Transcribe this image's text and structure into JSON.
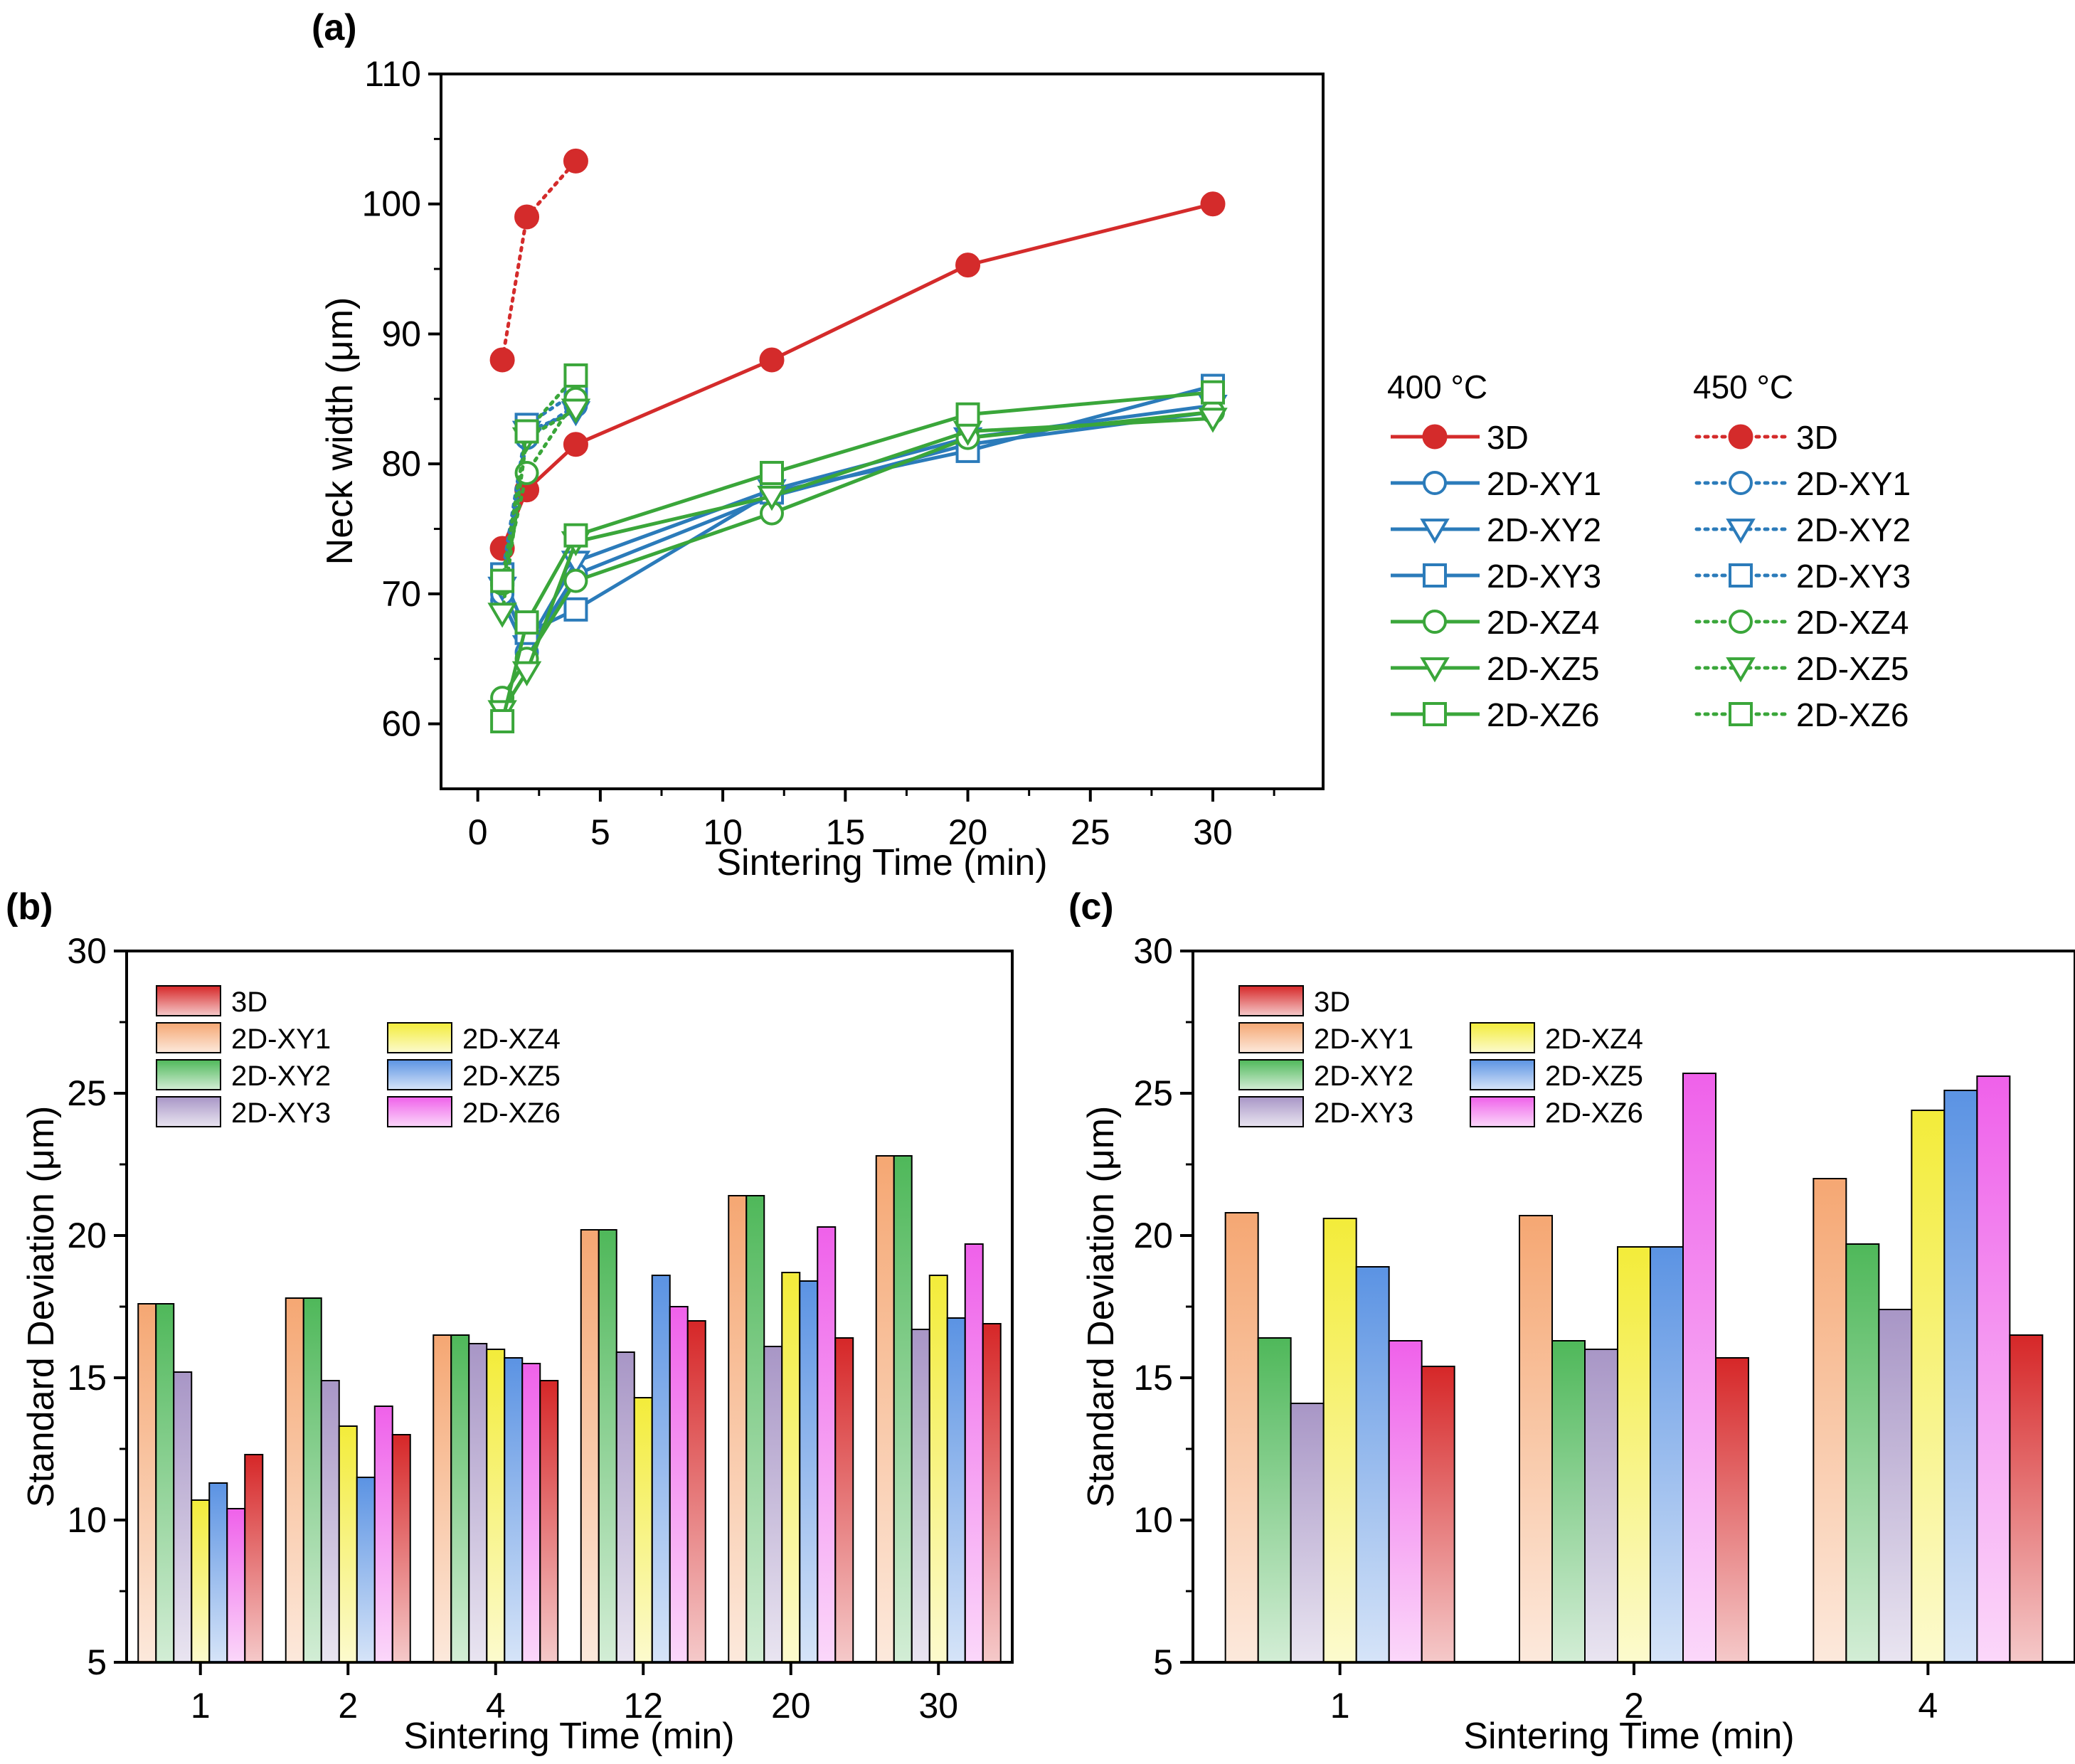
{
  "panels": {
    "a": "(a)",
    "b": "(b)",
    "c": "(c)"
  },
  "colors": {
    "3D": "#d62728",
    "2D-XY1": "#f5a773",
    "2D-XY2": "#4fb85a",
    "2D-XY3": "#a896c6",
    "2D-XZ4": "#f3ec3a",
    "2D-XZ5": "#5b93e3",
    "2D-XZ6": "#ef61ea",
    "line_red": "#d42b2b",
    "line_blue": "#2b7bba",
    "line_green": "#3aa63a"
  },
  "chart_data": [
    {
      "id": "a",
      "type": "line",
      "xlabel": "Sintering Time (min)",
      "ylabel": "Neck width (μm)",
      "xlim": [
        -1.5,
        34.5
      ],
      "ylim": [
        55,
        110
      ],
      "xticks": [
        0,
        5,
        10,
        15,
        20,
        25,
        30
      ],
      "yticks": [
        60,
        70,
        80,
        90,
        100,
        110
      ],
      "legend": {
        "placement": "right",
        "header_400": "400 °C",
        "header_450": "450 °C",
        "labels": [
          "3D",
          "2D-XY1",
          "2D-XY2",
          "2D-XY3",
          "2D-XZ4",
          "2D-XZ5",
          "2D-XZ6"
        ]
      },
      "series": [
        {
          "name": "3D",
          "temp": "400",
          "style": "solid",
          "color": "line_red",
          "marker": "filled-circle",
          "x": [
            1,
            2,
            4,
            12,
            20,
            30
          ],
          "y": [
            73.5,
            78.0,
            81.5,
            88.0,
            95.3,
            100.0
          ]
        },
        {
          "name": "2D-XY1",
          "temp": "400",
          "style": "solid",
          "color": "line_blue",
          "marker": "circle",
          "x": [
            1,
            2,
            4,
            12,
            20,
            30
          ],
          "y": [
            69.5,
            65.5,
            71.5,
            77.5,
            81.5,
            84.0
          ]
        },
        {
          "name": "2D-XY2",
          "temp": "400",
          "style": "solid",
          "color": "line_blue",
          "marker": "triangle",
          "x": [
            1,
            2,
            4,
            12,
            20,
            30
          ],
          "y": [
            70.5,
            66.0,
            72.5,
            78.0,
            82.0,
            84.5
          ]
        },
        {
          "name": "2D-XY3",
          "temp": "400",
          "style": "solid",
          "color": "line_blue",
          "marker": "square",
          "x": [
            1,
            2,
            4,
            12,
            20,
            30
          ],
          "y": [
            71.5,
            67.0,
            68.8,
            77.8,
            81.0,
            86.0
          ]
        },
        {
          "name": "2D-XZ4",
          "temp": "400",
          "style": "solid",
          "color": "line_green",
          "marker": "circle",
          "x": [
            1,
            2,
            4,
            12,
            20,
            30
          ],
          "y": [
            62.0,
            65.0,
            71.0,
            76.2,
            82.0,
            84.0
          ]
        },
        {
          "name": "2D-XZ5",
          "temp": "400",
          "style": "solid",
          "color": "line_green",
          "marker": "triangle",
          "x": [
            1,
            2,
            4,
            12,
            20,
            30
          ],
          "y": [
            61.0,
            64.0,
            74.0,
            77.5,
            82.5,
            83.5
          ]
        },
        {
          "name": "2D-XZ6",
          "temp": "400",
          "style": "solid",
          "color": "line_green",
          "marker": "square",
          "x": [
            1,
            2,
            4,
            12,
            20,
            30
          ],
          "y": [
            60.2,
            67.8,
            74.5,
            79.3,
            83.8,
            85.5
          ]
        },
        {
          "name": "3D",
          "temp": "450",
          "style": "dotted",
          "color": "line_red",
          "marker": "filled-circle",
          "x": [
            1,
            2,
            4
          ],
          "y": [
            88.0,
            99.0,
            103.3
          ]
        },
        {
          "name": "2D-XY1",
          "temp": "450",
          "style": "dotted",
          "color": "line_blue",
          "marker": "circle",
          "x": [
            1,
            2,
            4
          ],
          "y": [
            70.0,
            82.0,
            84.5
          ]
        },
        {
          "name": "2D-XY2",
          "temp": "450",
          "style": "dotted",
          "color": "line_blue",
          "marker": "triangle",
          "x": [
            1,
            2,
            4
          ],
          "y": [
            70.5,
            82.5,
            84.0
          ]
        },
        {
          "name": "2D-XY3",
          "temp": "450",
          "style": "dotted",
          "color": "line_blue",
          "marker": "square",
          "x": [
            1,
            2,
            4
          ],
          "y": [
            71.5,
            83.0,
            85.5
          ]
        },
        {
          "name": "2D-XZ4",
          "temp": "450",
          "style": "dotted",
          "color": "line_green",
          "marker": "circle",
          "x": [
            1,
            2,
            4
          ],
          "y": [
            70.8,
            79.3,
            85.0
          ]
        },
        {
          "name": "2D-XZ5",
          "temp": "450",
          "style": "dotted",
          "color": "line_green",
          "marker": "triangle",
          "x": [
            1,
            2,
            4
          ],
          "y": [
            68.5,
            82.0,
            84.2
          ]
        },
        {
          "name": "2D-XZ6",
          "temp": "450",
          "style": "dotted",
          "color": "line_green",
          "marker": "square",
          "x": [
            1,
            2,
            4
          ],
          "y": [
            71.0,
            82.5,
            86.8
          ]
        }
      ]
    },
    {
      "id": "b",
      "type": "bar",
      "xlabel": "Sintering Time (min)",
      "ylabel": "Standard Deviation (μm)",
      "ylim": [
        5,
        30
      ],
      "yticks": [
        5,
        10,
        15,
        20,
        25,
        30
      ],
      "categories": [
        "1",
        "2",
        "4",
        "12",
        "20",
        "30"
      ],
      "legend": {
        "placement": "top-left",
        "labels": [
          "3D",
          "2D-XY1",
          "2D-XY2",
          "2D-XY3",
          "2D-XZ4",
          "2D-XZ5",
          "2D-XZ6"
        ]
      },
      "series": [
        {
          "name": "2D-XY1",
          "values": [
            17.6,
            17.8,
            16.5,
            20.2,
            21.4,
            22.8
          ]
        },
        {
          "name": "2D-XY2",
          "values": [
            17.6,
            17.8,
            16.5,
            20.2,
            21.4,
            22.8
          ]
        },
        {
          "name": "2D-XY3",
          "values": [
            15.2,
            14.9,
            16.2,
            15.9,
            16.1,
            16.7
          ]
        },
        {
          "name": "2D-XZ4",
          "values": [
            10.7,
            13.3,
            16.0,
            14.3,
            18.7,
            18.6
          ]
        },
        {
          "name": "2D-XZ5",
          "values": [
            11.3,
            11.5,
            15.7,
            18.6,
            18.4,
            17.1
          ]
        },
        {
          "name": "2D-XZ6",
          "values": [
            10.4,
            14.0,
            15.5,
            17.5,
            20.3,
            19.7
          ]
        },
        {
          "name": "3D",
          "values": [
            12.3,
            13.0,
            14.9,
            17.0,
            16.4,
            16.9
          ]
        }
      ]
    },
    {
      "id": "c",
      "type": "bar",
      "xlabel": "Sintering Time (min)",
      "ylabel": "Standard Deviation (μm)",
      "ylim": [
        5,
        30
      ],
      "yticks": [
        5,
        10,
        15,
        20,
        25,
        30
      ],
      "categories": [
        "1",
        "2",
        "4"
      ],
      "legend": {
        "placement": "top-left",
        "labels": [
          "3D",
          "2D-XY1",
          "2D-XY2",
          "2D-XY3",
          "2D-XZ4",
          "2D-XZ5",
          "2D-XZ6"
        ]
      },
      "series": [
        {
          "name": "2D-XY1",
          "values": [
            20.8,
            20.7,
            22.0
          ]
        },
        {
          "name": "2D-XY2",
          "values": [
            16.4,
            16.3,
            19.7
          ]
        },
        {
          "name": "2D-XY3",
          "values": [
            14.1,
            16.0,
            17.4
          ]
        },
        {
          "name": "2D-XZ4",
          "values": [
            20.6,
            19.6,
            24.4
          ]
        },
        {
          "name": "2D-XZ5",
          "values": [
            18.9,
            19.6,
            25.1
          ]
        },
        {
          "name": "2D-XZ6",
          "values": [
            16.3,
            25.7,
            25.6
          ]
        },
        {
          "name": "3D",
          "values": [
            15.4,
            15.7,
            16.5
          ]
        }
      ]
    }
  ]
}
